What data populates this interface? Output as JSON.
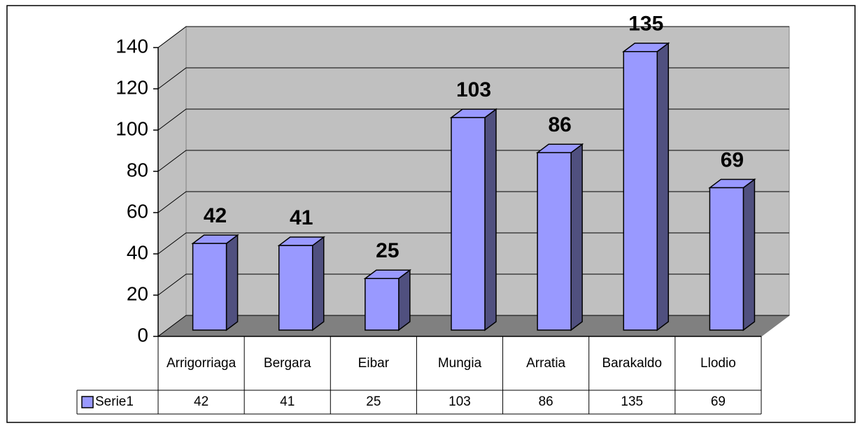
{
  "chart_data": {
    "type": "bar",
    "categories": [
      "Arrigorriaga",
      "Bergara",
      "Eibar",
      "Mungia",
      "Arratia",
      "Barakaldo",
      "Llodio"
    ],
    "series": [
      {
        "name": "Serie1",
        "color": "#9999ff",
        "values": [
          42,
          41,
          25,
          103,
          86,
          135,
          69
        ]
      }
    ],
    "ylim": [
      0,
      140
    ],
    "yticks": [
      0,
      20,
      40,
      60,
      80,
      100,
      120,
      140
    ],
    "grid": true
  }
}
